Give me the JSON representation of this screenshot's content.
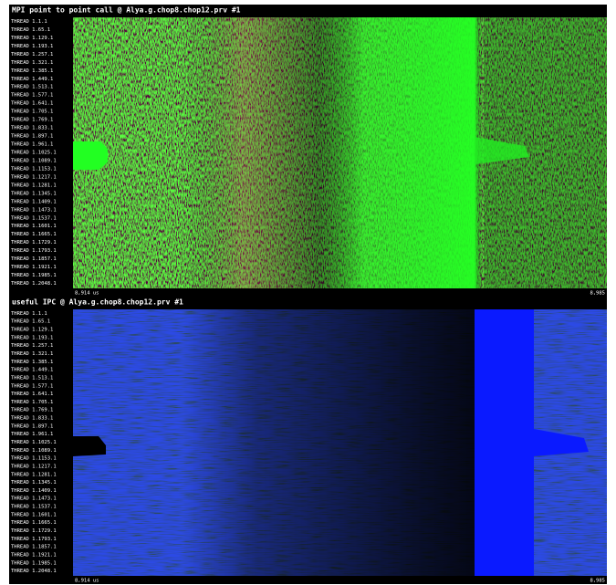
{
  "panels": [
    {
      "title": "MPI point to point call @ Alya.g.chop8.chop12.prv #1",
      "threads": [
        "THREAD 1.1.1",
        "THREAD 1.65.1",
        "THREAD 1.129.1",
        "THREAD 1.193.1",
        "THREAD 1.257.1",
        "THREAD 1.321.1",
        "THREAD 1.385.1",
        "THREAD 1.449.1",
        "THREAD 1.513.1",
        "THREAD 1.577.1",
        "THREAD 1.641.1",
        "THREAD 1.705.1",
        "THREAD 1.769.1",
        "THREAD 1.833.1",
        "THREAD 1.897.1",
        "THREAD 1.961.1",
        "THREAD 1.1025.1",
        "THREAD 1.1089.1",
        "THREAD 1.1153.1",
        "THREAD 1.1217.1",
        "THREAD 1.1281.1",
        "THREAD 1.1345.1",
        "THREAD 1.1409.1",
        "THREAD 1.1473.1",
        "THREAD 1.1537.1",
        "THREAD 1.1601.1",
        "THREAD 1.1665.1",
        "THREAD 1.1729.1",
        "THREAD 1.1793.1",
        "THREAD 1.1857.1",
        "THREAD 1.1921.1",
        "THREAD 1.1985.1",
        "THREAD 1.2048.1"
      ],
      "time_start": "8,914 us",
      "time_end": "8,985"
    },
    {
      "title": "useful IPC @ Alya.g.chop8.chop12.prv #1",
      "threads": [
        "THREAD 1.1.1",
        "THREAD 1.65.1",
        "THREAD 1.129.1",
        "THREAD 1.193.1",
        "THREAD 1.257.1",
        "THREAD 1.321.1",
        "THREAD 1.385.1",
        "THREAD 1.449.1",
        "THREAD 1.513.1",
        "THREAD 1.577.1",
        "THREAD 1.641.1",
        "THREAD 1.705.1",
        "THREAD 1.769.1",
        "THREAD 1.833.1",
        "THREAD 1.897.1",
        "THREAD 1.961.1",
        "THREAD 1.1025.1",
        "THREAD 1.1089.1",
        "THREAD 1.1153.1",
        "THREAD 1.1217.1",
        "THREAD 1.1281.1",
        "THREAD 1.1345.1",
        "THREAD 1.1409.1",
        "THREAD 1.1473.1",
        "THREAD 1.1537.1",
        "THREAD 1.1601.1",
        "THREAD 1.1665.1",
        "THREAD 1.1729.1",
        "THREAD 1.1793.1",
        "THREAD 1.1857.1",
        "THREAD 1.1921.1",
        "THREAD 1.1985.1",
        "THREAD 1.2048.1"
      ],
      "time_start": "8,914 us",
      "time_end": "8,985"
    }
  ]
}
